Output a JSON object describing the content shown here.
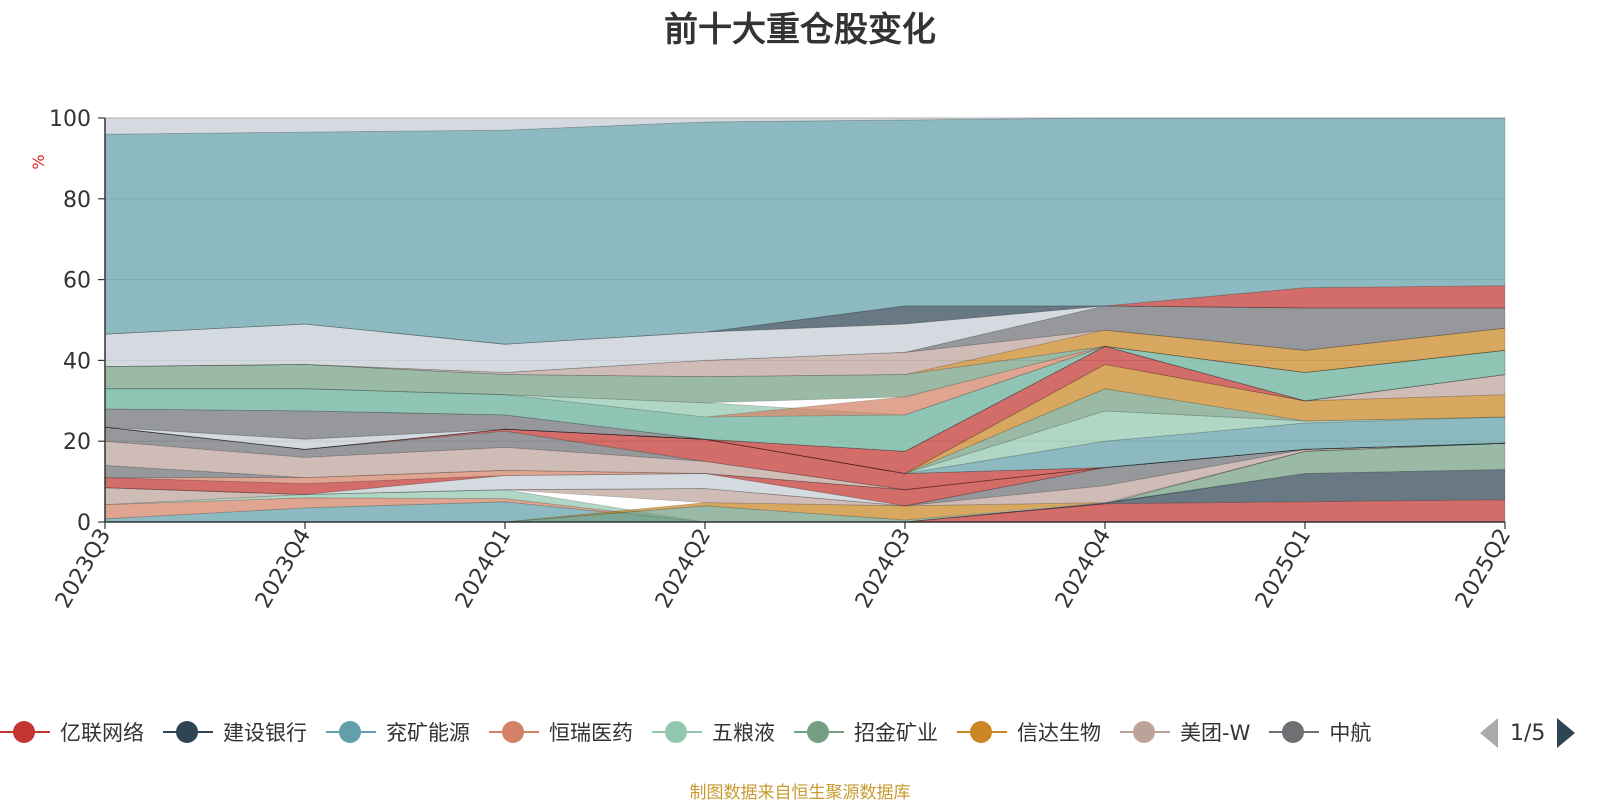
{
  "title": "前十大重仓股变化",
  "source_note": "制图数据来自恒生聚源数据库",
  "legend_page": "1/5",
  "chart_data": {
    "type": "area",
    "title": "前十大重仓股变化",
    "ylabel": "%",
    "ylim": [
      0,
      100
    ],
    "yticks": [
      0,
      20,
      40,
      60,
      80,
      100
    ],
    "grid": true,
    "stacked": true,
    "legend_position": "bottom",
    "categories": [
      "2023Q3",
      "2023Q4",
      "2024Q1",
      "2024Q2",
      "2024Q3",
      "2024Q4",
      "2025Q1",
      "2025Q2"
    ],
    "series": [
      {
        "name": "亿联网络",
        "color": "#c23531",
        "values": [
          null,
          null,
          null,
          null,
          null,
          4.5,
          5,
          5.5
        ]
      },
      {
        "name": "建设银行",
        "color": "#2f4554",
        "values": [
          null,
          null,
          null,
          null,
          null,
          0.3,
          7,
          7.5
        ]
      },
      {
        "name": "兖矿能源",
        "color": "#61a0a8",
        "values": [
          0.8,
          3.5,
          5,
          null,
          null,
          null,
          null,
          null
        ]
      },
      {
        "name": "恒瑞医药",
        "color": "#d48265",
        "values": [
          3.5,
          2.5,
          0.8,
          null,
          null,
          null,
          null,
          null
        ]
      },
      {
        "name": "五粮液",
        "color": "#91c7ae",
        "values": [
          null,
          0.8,
          2.2,
          null,
          null,
          null,
          null,
          null
        ]
      },
      {
        "name": "招金矿业",
        "color": "#749f83",
        "values": [
          null,
          null,
          null,
          4,
          0.5,
          null,
          5.5,
          6.5
        ]
      },
      {
        "name": "信达生物",
        "color": "#ca8622",
        "values": [
          null,
          null,
          null,
          0.8,
          3.5,
          null,
          null,
          null
        ]
      },
      {
        "name": "美团-W",
        "color": "#bda29a",
        "values": [
          null,
          null,
          null,
          3.5,
          null,
          null,
          null,
          null
        ]
      },
      {
        "name": "中航",
        "color": "#6e7074",
        "values": [
          4,
          null,
          null,
          null,
          null,
          null,
          null,
          null
        ]
      }
    ],
    "bands": [
      {
        "color": "#61a0a8",
        "lower": [
          0,
          0,
          0,
          0,
          0,
          4.5,
          17.5,
          19.5
        ],
        "upper": [
          0.8,
          3.5,
          5,
          0,
          0,
          4.5,
          17.5,
          19.5
        ]
      },
      {
        "color": "#d48265",
        "lower": [
          0.8,
          3.5,
          5,
          0,
          0,
          4.5,
          17.5,
          19.5
        ],
        "upper": [
          4.3,
          6,
          5.8,
          0,
          0,
          4.5,
          17.5,
          19.5
        ]
      },
      {
        "color": "#91c7ae",
        "lower": [
          4.3,
          6,
          5.8,
          0,
          0,
          4.5,
          17.5,
          19.5
        ],
        "upper": [
          4.3,
          6.8,
          8,
          0,
          0,
          4.5,
          17.5,
          19.5
        ]
      },
      {
        "color": "#749f83",
        "lower": [
          0,
          0,
          0,
          0,
          0,
          4.5,
          12,
          13
        ],
        "upper": [
          0,
          0,
          0,
          4,
          0.5,
          4.5,
          17.5,
          19.5
        ]
      },
      {
        "color": "#2f4554",
        "lower": [
          0,
          0,
          0,
          0,
          0,
          4.5,
          5,
          5.5
        ],
        "upper": [
          0,
          0,
          0,
          0,
          0,
          4.8,
          12,
          13
        ]
      },
      {
        "color": "#c23531",
        "lower": [
          0,
          0,
          0,
          0,
          0,
          0,
          0,
          0
        ],
        "upper": [
          0,
          0,
          0,
          0,
          0,
          4.5,
          5,
          5.5
        ]
      },
      {
        "color": "#ca8622",
        "lower": [
          0,
          0,
          0,
          4,
          0.5,
          4.8,
          17.5,
          19.5
        ],
        "upper": [
          0,
          0,
          0,
          4.8,
          4,
          4.8,
          17.5,
          19.5
        ]
      },
      {
        "color": "#bda29a",
        "lower": [
          4.3,
          6.8,
          8,
          4.8,
          4,
          4.8,
          17.5,
          19.5
        ],
        "upper": [
          8.5,
          6.8,
          8,
          8.3,
          4,
          9,
          18,
          19.5
        ]
      },
      {
        "color": "#6e7074",
        "lower": [
          8.5,
          6.8,
          8,
          8.3,
          4,
          9,
          18,
          19.5
        ],
        "upper": [
          8.5,
          6.8,
          8,
          8.3,
          4,
          13.5,
          18,
          19.5
        ]
      },
      {
        "color": "#c4ccd3",
        "lower": [
          8.5,
          6.8,
          8,
          8.3,
          4,
          13.5,
          18,
          19.5
        ],
        "upper": [
          8.5,
          6.8,
          11.5,
          12,
          4,
          13.5,
          18,
          19.5
        ]
      },
      {
        "color": "#c23531",
        "lower": [
          8.5,
          6.8,
          11.5,
          12,
          4,
          13.5,
          18,
          19.5
        ],
        "upper": [
          11,
          9.5,
          11.5,
          12,
          8,
          13.5,
          18,
          19.5
        ]
      },
      {
        "color": "#d48265",
        "lower": [
          11,
          9.5,
          11.5,
          12,
          8,
          13.5,
          18,
          19.5
        ],
        "upper": [
          11,
          11,
          12.8,
          12,
          8,
          13.5,
          18,
          19.5
        ]
      },
      {
        "color": "#6e7074",
        "lower": [
          11,
          11,
          12.8,
          12,
          8,
          13.5,
          18,
          19.5
        ],
        "upper": [
          14,
          11,
          12.8,
          12,
          8,
          13.5,
          18,
          19.5
        ]
      },
      {
        "color": "#bda29a",
        "lower": [
          14,
          11,
          12.8,
          12,
          8,
          13.5,
          18,
          19.5
        ],
        "upper": [
          20,
          16,
          18.5,
          15,
          8,
          13.5,
          18,
          19.5
        ]
      },
      {
        "color": "#6e7074",
        "lower": [
          20,
          16,
          18.5,
          15,
          8,
          13.5,
          18,
          19.5
        ],
        "upper": [
          23.5,
          18,
          22.5,
          15,
          8,
          13.5,
          18,
          19.5
        ]
      },
      {
        "color": "#c23531",
        "lower": [
          23.5,
          18,
          22.5,
          15,
          8,
          13.5,
          18,
          19.5
        ],
        "upper": [
          23.5,
          18,
          23,
          20.5,
          12,
          13.5,
          18,
          19.5
        ]
      },
      {
        "color": "#749f83",
        "lower": [
          23.5,
          18,
          23,
          20.5,
          12,
          13.5,
          18,
          19.5
        ],
        "upper": [
          23.5,
          18,
          23,
          20.5,
          12,
          13.5,
          18,
          19.5
        ]
      },
      {
        "color": "#61a0a8",
        "lower": [
          23.5,
          18,
          23,
          20.5,
          12,
          13.5,
          18,
          19.5
        ],
        "upper": [
          23.5,
          18,
          23,
          20.5,
          12,
          20,
          24.5,
          26
        ]
      },
      {
        "color": "#91c7ae",
        "lower": [
          23.5,
          18,
          23,
          20.5,
          12,
          20,
          24.5,
          26
        ],
        "upper": [
          23.5,
          18,
          23,
          20.5,
          12,
          27.5,
          25,
          26
        ]
      },
      {
        "color": "#749f83",
        "lower": [
          23.5,
          18,
          23,
          20.5,
          12,
          27.5,
          25,
          26
        ],
        "upper": [
          23.5,
          18,
          23,
          20.5,
          12,
          33,
          25,
          26
        ]
      },
      {
        "color": "#ca8622",
        "lower": [
          23.5,
          18,
          23,
          20.5,
          12,
          33,
          25,
          26
        ],
        "upper": [
          23.5,
          18,
          23,
          20.5,
          12,
          39,
          30,
          31.5
        ]
      },
      {
        "color": "#bda29a",
        "lower": [
          23.5,
          18,
          23,
          20.5,
          12,
          39,
          30,
          31.5
        ],
        "upper": [
          23.5,
          18,
          23,
          20.5,
          12,
          39,
          30,
          36.5
        ]
      },
      {
        "color": "#c23531",
        "lower": [
          23.5,
          18,
          23,
          20.5,
          12,
          39,
          30,
          36.5
        ],
        "upper": [
          23.5,
          18,
          23,
          20.5,
          17.5,
          43.5,
          30,
          36.5
        ]
      },
      {
        "color": "#c4ccd3",
        "lower": [
          23.5,
          18,
          23,
          20.5,
          17.5,
          43.5,
          30,
          36.5
        ],
        "upper": [
          23.5,
          20.5,
          23,
          20.5,
          17.5,
          43.5,
          30,
          36.5
        ]
      },
      {
        "color": "#6e7074",
        "lower": [
          23.5,
          20.5,
          23,
          20.5,
          17.5,
          43.5,
          30,
          36.5
        ],
        "upper": [
          28,
          27.5,
          26.5,
          20.5,
          17.5,
          43.5,
          30,
          36.5
        ]
      },
      {
        "color": "#61a0a8",
        "lower": [
          28,
          27.5,
          26.5,
          20.5,
          17.5,
          43.5,
          30,
          36.5
        ],
        "upper": [
          33,
          33,
          31.5,
          26,
          26.5,
          43.5,
          37,
          42.5
        ]
      },
      {
        "color": "#91c7ae",
        "lower": [
          28,
          27.5,
          26.5,
          20.5,
          17.5,
          43.5,
          30,
          36.5
        ],
        "upper": [
          33,
          33,
          31.5,
          29.5,
          26.5,
          43.5,
          37,
          42.5
        ]
      },
      {
        "color": "#d48265",
        "lower": [
          33,
          33,
          31.5,
          26,
          26.5,
          43.5,
          37,
          42.5
        ],
        "upper": [
          33,
          33,
          31.5,
          26,
          31,
          43.5,
          37,
          42.5
        ]
      },
      {
        "color": "#749f83",
        "lower": [
          33,
          33,
          31.5,
          29.5,
          31,
          43.5,
          37,
          42.5
        ],
        "upper": [
          38.5,
          39,
          36.5,
          36,
          36.5,
          43.5,
          37,
          42.5
        ]
      },
      {
        "color": "#ca8622",
        "lower": [
          38.5,
          39,
          36.5,
          36,
          36.5,
          43.5,
          37,
          42.5
        ],
        "upper": [
          38.5,
          39,
          36.5,
          36,
          36.5,
          47.5,
          42.5,
          48
        ]
      },
      {
        "color": "#bda29a",
        "lower": [
          38.5,
          39,
          36.5,
          36,
          36.5,
          47.5,
          42.5,
          48
        ],
        "upper": [
          38.5,
          39,
          37,
          40,
          42,
          47.5,
          42.5,
          48
        ]
      },
      {
        "color": "#6e7074",
        "lower": [
          38.5,
          39,
          37,
          40,
          42,
          47.5,
          42.5,
          48
        ],
        "upper": [
          38.5,
          39,
          37,
          40,
          42,
          53.5,
          53,
          53
        ]
      },
      {
        "color": "#c4ccd3",
        "lower": [
          38.5,
          39,
          37,
          40,
          42,
          53.5,
          53,
          53
        ],
        "upper": [
          46.5,
          49,
          44,
          47,
          49,
          53.5,
          53,
          53
        ]
      },
      {
        "color": "#2f4554",
        "lower": [
          46.5,
          49,
          44,
          47,
          49,
          53.5,
          53,
          53
        ],
        "upper": [
          46.5,
          49,
          44,
          47,
          53.5,
          53.5,
          53,
          53
        ]
      },
      {
        "color": "#c23531",
        "lower": [
          46.5,
          49,
          44,
          47,
          53.5,
          53.5,
          53,
          53
        ],
        "upper": [
          46.5,
          49,
          44,
          47,
          53.5,
          53.5,
          58,
          58.5
        ]
      },
      {
        "color": "#61a0a8",
        "lower": [
          46.5,
          49,
          44,
          47,
          53.5,
          53.5,
          58,
          58.5
        ],
        "upper": [
          96,
          96.5,
          97,
          99,
          99.5,
          100,
          100,
          100
        ]
      },
      {
        "color": "#c4ccd3",
        "lower": [
          96,
          96.5,
          97,
          99,
          99.5,
          100,
          100,
          100
        ],
        "upper": [
          100,
          100,
          100,
          100,
          100,
          100,
          100,
          100
        ]
      }
    ]
  }
}
